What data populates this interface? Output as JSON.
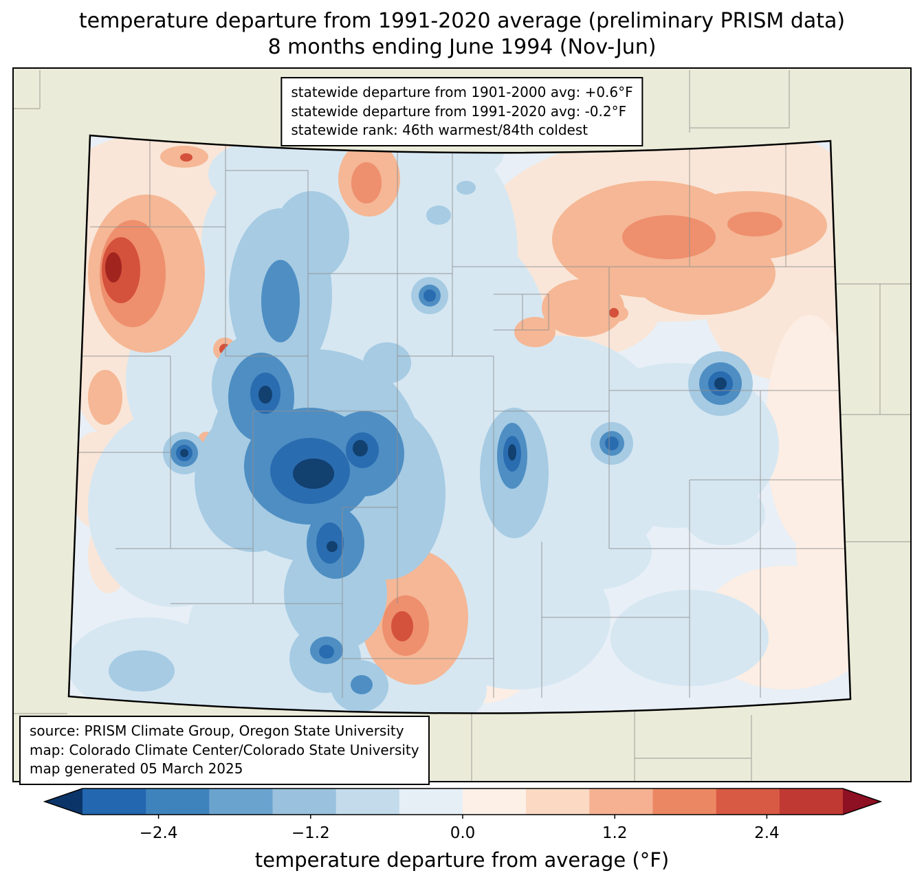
{
  "title": {
    "line1": "temperature departure from 1991-2020 average (preliminary PRISM data)",
    "line2": "8 months ending June 1994 (Nov-Jun)"
  },
  "stats_box": {
    "line1": "statewide departure from 1901-2000 avg: +0.6°F",
    "line2": "statewide departure from 1991-2020 avg: -0.2°F",
    "line3": "statewide rank: 46th warmest/84th coldest"
  },
  "source_box": {
    "line1": "source: PRISM Climate Group, Oregon State University",
    "line2": "map: Colorado Climate Center/Colorado State University",
    "line3": "map generated 05 March 2025"
  },
  "colorbar": {
    "label": "temperature departure from average (°F)",
    "ticks": [
      {
        "label": "−2.4",
        "pos": 0.1
      },
      {
        "label": "−1.2",
        "pos": 0.3
      },
      {
        "label": "0.0",
        "pos": 0.5
      },
      {
        "label": "1.2",
        "pos": 0.7
      },
      {
        "label": "2.4",
        "pos": 0.9
      }
    ],
    "segment_colors": [
      "#2267af",
      "#3f83bc",
      "#6ba3cf",
      "#9ac2de",
      "#c3dbeb",
      "#e6eff6",
      "#fdf0e7",
      "#fbd9c2",
      "#f5b191",
      "#ec8763",
      "#d85a44",
      "#c03a33"
    ],
    "under_arrow_color": "#0b3569",
    "over_arrow_color": "#8e1023"
  },
  "colors": {
    "outside_state": "#ebebd9",
    "cool_base": "#e8eff6",
    "warm_light": "#f9e6d8",
    "extreme_cool": "#12406f",
    "extreme_warm": "#a2241f"
  }
}
